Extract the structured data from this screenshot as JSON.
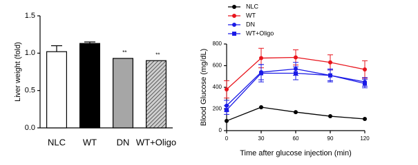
{
  "chart_data": [
    {
      "type": "bar",
      "y_label": "Liver weight (fold)",
      "categories": [
        "NLC",
        "WT",
        "DN",
        "WT+Oligo"
      ],
      "values": [
        1.02,
        1.13,
        0.93,
        0.9
      ],
      "errors": [
        0.08,
        0.02,
        0,
        0
      ],
      "colors": [
        "#ffffff",
        "#000000",
        "#a6a6a6",
        "#cfcfcf"
      ],
      "hatch": [
        false,
        false,
        false,
        true
      ],
      "annotations": [
        {
          "category": "DN",
          "text": "**"
        },
        {
          "category": "WT+Oligo",
          "text": "**"
        }
      ],
      "ylim": [
        0,
        1.5
      ],
      "yticks": [
        {
          "value": 0,
          "label": "0.0"
        },
        {
          "value": 0.5,
          "label": "0.5"
        },
        {
          "value": 1,
          "label": "1.0"
        },
        {
          "value": 1.5,
          "label": "1.5"
        }
      ]
    },
    {
      "type": "line",
      "x_label": "Time after glucose injection (min)",
      "y_label": "Blood Glucose (mg/dL)",
      "x": [
        0,
        30,
        60,
        90,
        120
      ],
      "series": [
        {
          "name": "NLC",
          "color": "#000000",
          "marker": "circle",
          "values": [
            90,
            216,
            171,
            133,
            108
          ],
          "errors": [
            0,
            0,
            0,
            0,
            0
          ]
        },
        {
          "name": "WT",
          "color": "#e8141c",
          "marker": "circle",
          "values": [
            381,
            670,
            676,
            630,
            565
          ],
          "errors": [
            80,
            90,
            70,
            70,
            80
          ]
        },
        {
          "name": "DN",
          "color": "#1a1ae6",
          "marker": "circle",
          "values": [
            230,
            540,
            570,
            510,
            450
          ],
          "errors": [
            50,
            70,
            60,
            60,
            40
          ]
        },
        {
          "name": "WT+Oligo",
          "color": "#1a1ae6",
          "marker": "square",
          "values": [
            190,
            530,
            530,
            510,
            435
          ],
          "errors": [
            40,
            80,
            60,
            50,
            40
          ]
        }
      ],
      "legend": "top-left",
      "xlim": [
        0,
        120
      ],
      "xticks": [
        0,
        30,
        60,
        90,
        120
      ],
      "ylim": [
        0,
        800
      ],
      "yticks": [
        0,
        200,
        400,
        600,
        800
      ]
    }
  ]
}
